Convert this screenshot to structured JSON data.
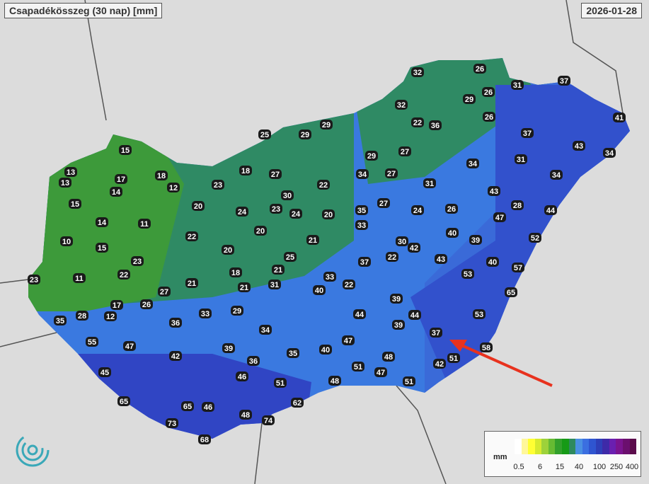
{
  "header": {
    "title": "Csapadékösszeg (30 nap) [mm]",
    "date": "2026-01-28"
  },
  "legend": {
    "unit": "mm",
    "ticks": [
      "0.5",
      "6",
      "15",
      "40",
      "100",
      "250",
      "400"
    ],
    "colors": [
      "#ffffff",
      "#fff79a",
      "#ffff33",
      "#d6ea2f",
      "#9dd23a",
      "#66bb33",
      "#33a02c",
      "#169a16",
      "#2e8a5e",
      "#4a90e2",
      "#3b6fe0",
      "#2f55d0",
      "#2e3fb8",
      "#3e2aa8",
      "#6a1fb0",
      "#7a148f",
      "#6b0f6e",
      "#5a0a4a"
    ]
  },
  "colors": {
    "green_zone": "#3d9a3a",
    "teal_zone": "#2f8a64",
    "blue_zone": "#3a79e0",
    "deep_blue_zone": "#3045c4",
    "arrow": "#e8321e"
  },
  "stations": [
    32,
    26,
    31,
    37,
    26,
    29,
    32,
    22,
    36,
    26,
    41,
    37,
    25,
    29,
    29,
    43,
    34,
    29,
    27,
    31,
    15,
    13,
    17,
    18,
    13,
    12,
    14,
    18,
    27,
    23,
    22,
    34,
    27,
    34,
    34,
    31,
    43,
    30,
    15,
    20,
    24,
    23,
    24,
    20,
    35,
    27,
    24,
    26,
    28,
    44,
    14,
    11,
    33,
    47,
    20,
    22,
    21,
    40,
    39,
    52,
    10,
    15,
    20,
    30,
    42,
    23,
    25,
    37,
    22,
    43,
    40,
    57,
    22,
    11,
    18,
    21,
    33,
    53,
    23,
    21,
    27,
    21,
    31,
    40,
    22,
    65,
    39,
    17,
    26,
    33,
    29,
    44,
    44,
    53,
    35,
    28,
    12,
    36,
    39,
    34,
    37,
    55,
    47,
    47,
    40,
    58,
    39,
    35,
    48,
    42,
    36,
    51,
    47,
    51,
    42,
    45,
    46,
    51,
    48,
    51,
    62,
    65,
    65,
    46,
    48,
    74,
    73,
    68
  ]
}
